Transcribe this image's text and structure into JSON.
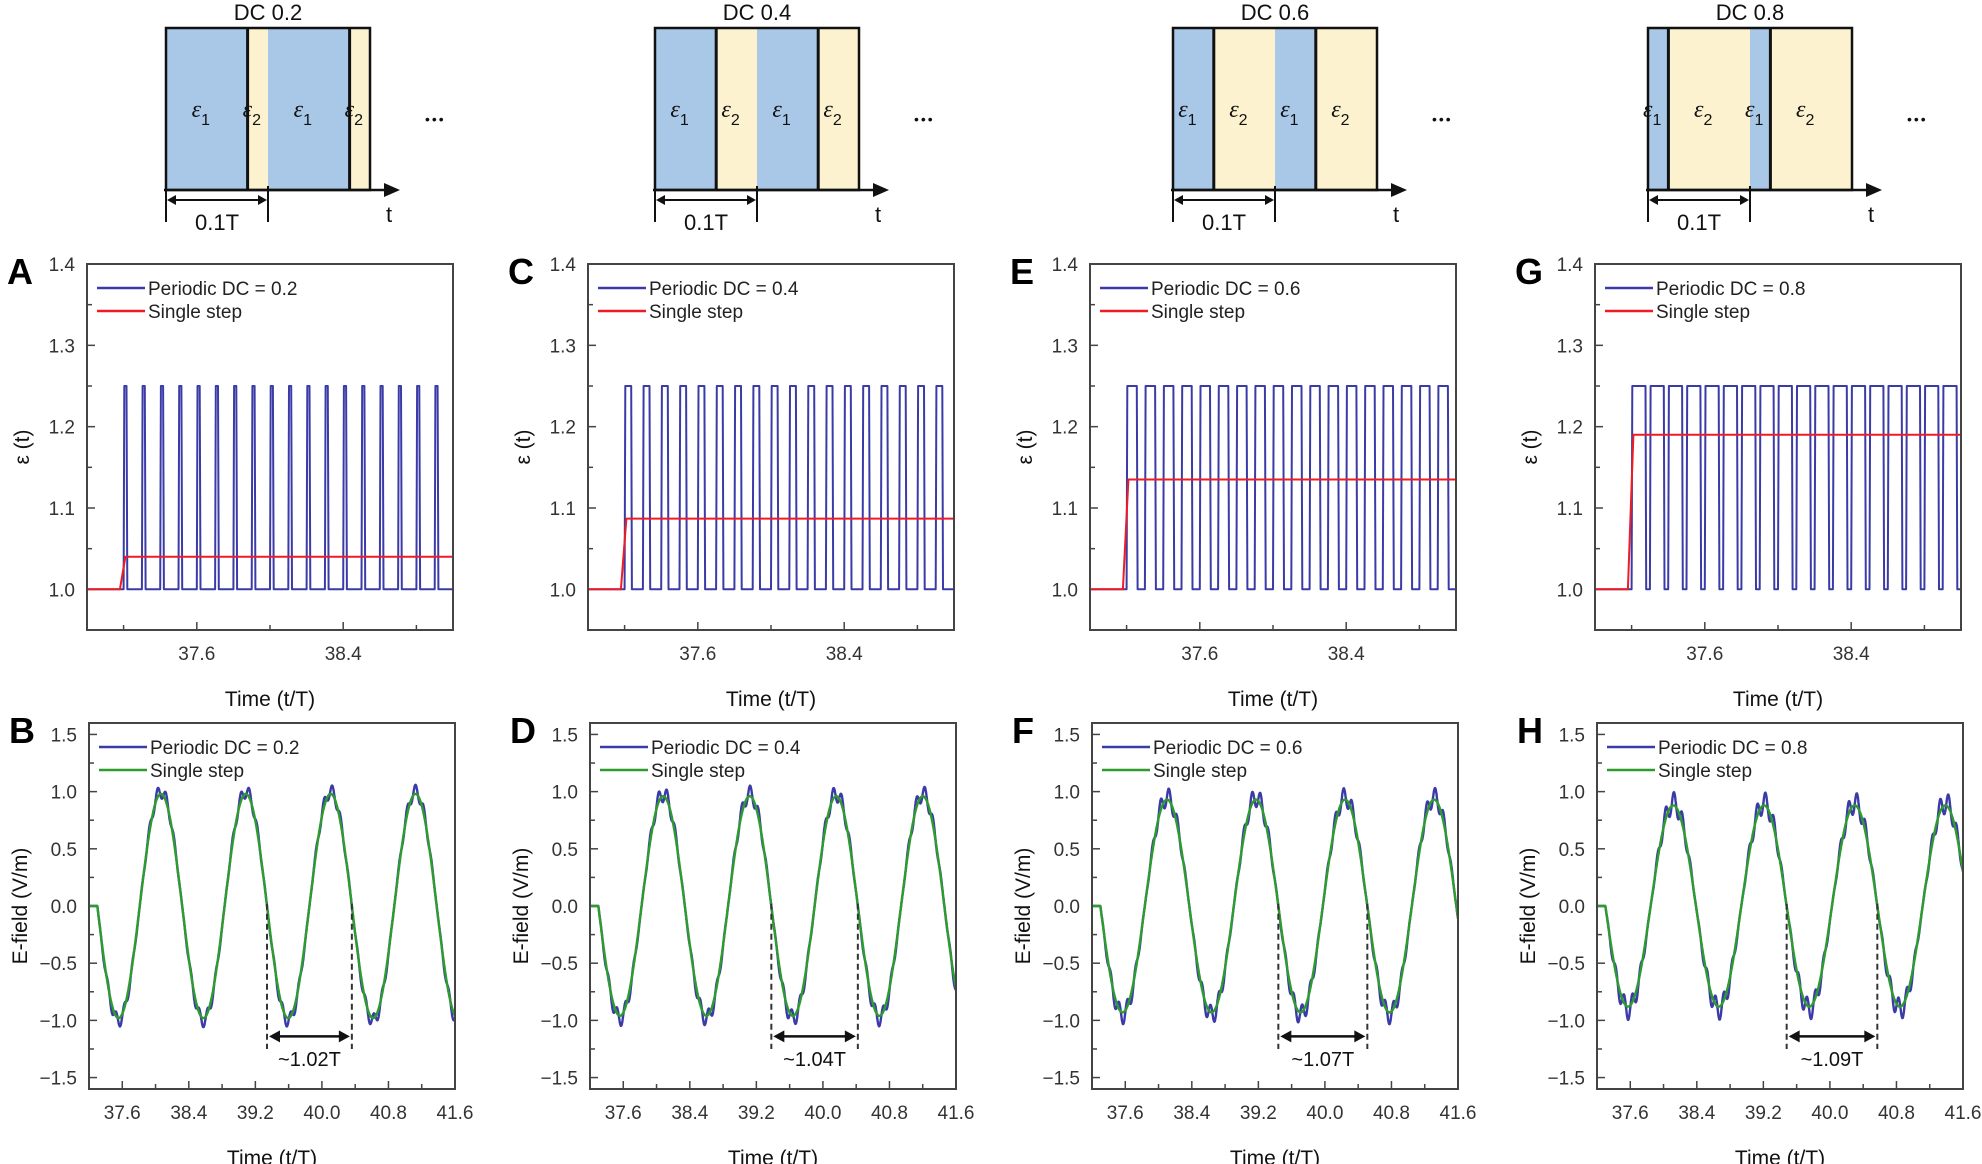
{
  "colors": {
    "periodic": "#3b3ba8",
    "single_step_top": "#ee1c24",
    "single_step_bottom": "#2e9b2e",
    "eps1_fill": "#a9c8e8",
    "eps2_fill": "#fdf2cf",
    "axis": "#444444"
  },
  "schematic_labels": {
    "eps": "ε",
    "sub1": "1",
    "sub2": "2",
    "period": "0.1T",
    "time": "t",
    "ellipsis": "•••"
  },
  "chart_data": [
    {
      "type": "schematic",
      "title": "DC 0.2",
      "duty_cycle": 0.2
    },
    {
      "type": "schematic",
      "title": "DC 0.4",
      "duty_cycle": 0.4
    },
    {
      "type": "schematic",
      "title": "DC 0.6",
      "duty_cycle": 0.6
    },
    {
      "type": "schematic",
      "title": "DC 0.8",
      "duty_cycle": 0.8
    },
    {
      "type": "line",
      "panel": "A",
      "xlabel": "Time (t/T)",
      "ylabel": "ε (t)",
      "xlim": [
        37.0,
        39.0
      ],
      "ylim": [
        0.95,
        1.4
      ],
      "xticks": [
        "37.6",
        "38.4"
      ],
      "yticks": [
        "1.0",
        "1.1",
        "1.2",
        "1.3",
        "1.4"
      ],
      "legend": "top-left",
      "series": [
        {
          "name": "Periodic DC = 0.2",
          "kind": "square_wave",
          "start": 37.2,
          "low": 1.0,
          "high": 1.25,
          "period": 0.1,
          "duty_cycle": 0.2
        },
        {
          "name": "Single step",
          "kind": "step",
          "start": 37.18,
          "low": 1.0,
          "high": 1.04
        }
      ]
    },
    {
      "type": "line",
      "panel": "C",
      "xlabel": "Time (t/T)",
      "ylabel": "ε (t)",
      "xlim": [
        37.0,
        39.0
      ],
      "ylim": [
        0.95,
        1.4
      ],
      "xticks": [
        "37.6",
        "38.4"
      ],
      "yticks": [
        "1.0",
        "1.1",
        "1.2",
        "1.3",
        "1.4"
      ],
      "legend": "top-left",
      "series": [
        {
          "name": "Periodic DC = 0.4",
          "kind": "square_wave",
          "start": 37.2,
          "low": 1.0,
          "high": 1.25,
          "period": 0.1,
          "duty_cycle": 0.4
        },
        {
          "name": "Single step",
          "kind": "step",
          "start": 37.18,
          "low": 1.0,
          "high": 1.087
        }
      ]
    },
    {
      "type": "line",
      "panel": "E",
      "xlabel": "Time (t/T)",
      "ylabel": "ε (t)",
      "xlim": [
        37.0,
        39.0
      ],
      "ylim": [
        0.95,
        1.4
      ],
      "xticks": [
        "37.6",
        "38.4"
      ],
      "yticks": [
        "1.0",
        "1.1",
        "1.2",
        "1.3",
        "1.4"
      ],
      "legend": "top-left",
      "series": [
        {
          "name": "Periodic DC = 0.6",
          "kind": "square_wave",
          "start": 37.2,
          "low": 1.0,
          "high": 1.25,
          "period": 0.1,
          "duty_cycle": 0.6
        },
        {
          "name": "Single step",
          "kind": "step",
          "start": 37.18,
          "low": 1.0,
          "high": 1.135
        }
      ]
    },
    {
      "type": "line",
      "panel": "G",
      "xlabel": "Time (t/T)",
      "ylabel": "ε (t)",
      "xlim": [
        37.0,
        39.0
      ],
      "ylim": [
        0.95,
        1.4
      ],
      "xticks": [
        "37.6",
        "38.4"
      ],
      "yticks": [
        "1.0",
        "1.1",
        "1.2",
        "1.3",
        "1.4"
      ],
      "legend": "top-left",
      "series": [
        {
          "name": "Periodic DC = 0.8",
          "kind": "square_wave",
          "start": 37.2,
          "low": 1.0,
          "high": 1.25,
          "period": 0.1,
          "duty_cycle": 0.8
        },
        {
          "name": "Single step",
          "kind": "step",
          "start": 37.18,
          "low": 1.0,
          "high": 1.19
        }
      ]
    },
    {
      "type": "line",
      "panel": "B",
      "xlabel": "Time (t/T)",
      "ylabel": "E-field (V/m)",
      "xlim": [
        37.2,
        41.6
      ],
      "ylim": [
        -1.6,
        1.6
      ],
      "xticks": [
        "37.6",
        "38.4",
        "39.2",
        "40.0",
        "40.8",
        "41.6"
      ],
      "yticks": [
        "−1.5",
        "−1.0",
        "−0.5",
        "0.0",
        "0.5",
        "1.0",
        "1.5"
      ],
      "legend": "top-left",
      "series": [
        {
          "name": "Periodic DC = 0.2",
          "kind": "sine",
          "onset": 37.3,
          "amplitude": 1.0,
          "period": 1.02,
          "ripple": 0.05
        },
        {
          "name": "Single step",
          "kind": "sine",
          "onset": 37.3,
          "amplitude": 0.98,
          "period": 1.02,
          "ripple": 0
        }
      ],
      "annotation": {
        "text": "~1.02T",
        "x_from": 39.34,
        "x_to": 40.36
      }
    },
    {
      "type": "line",
      "panel": "D",
      "xlabel": "Time (t/T)",
      "ylabel": "E-field (V/m)",
      "xlim": [
        37.2,
        41.6
      ],
      "ylim": [
        -1.6,
        1.6
      ],
      "xticks": [
        "37.6",
        "38.4",
        "39.2",
        "40.0",
        "40.8",
        "41.6"
      ],
      "yticks": [
        "−1.5",
        "−1.0",
        "−0.5",
        "0.0",
        "0.5",
        "1.0",
        "1.5"
      ],
      "legend": "top-left",
      "series": [
        {
          "name": "Periodic DC = 0.4",
          "kind": "sine",
          "onset": 37.3,
          "amplitude": 0.98,
          "period": 1.04,
          "ripple": 0.06
        },
        {
          "name": "Single step",
          "kind": "sine",
          "onset": 37.3,
          "amplitude": 0.96,
          "period": 1.04,
          "ripple": 0
        }
      ],
      "annotation": {
        "text": "~1.04T",
        "x_from": 39.38,
        "x_to": 40.42
      }
    },
    {
      "type": "line",
      "panel": "F",
      "xlabel": "Time (t/T)",
      "ylabel": "E-field (V/m)",
      "xlim": [
        37.2,
        41.6
      ],
      "ylim": [
        -1.6,
        1.6
      ],
      "xticks": [
        "37.6",
        "38.4",
        "39.2",
        "40.0",
        "40.8",
        "41.6"
      ],
      "yticks": [
        "−1.5",
        "−1.0",
        "−0.5",
        "0.0",
        "0.5",
        "1.0",
        "1.5"
      ],
      "legend": "top-left",
      "series": [
        {
          "name": "Periodic DC = 0.6",
          "kind": "sine",
          "onset": 37.3,
          "amplitude": 0.95,
          "period": 1.07,
          "ripple": 0.07
        },
        {
          "name": "Single step",
          "kind": "sine",
          "onset": 37.3,
          "amplitude": 0.93,
          "period": 1.07,
          "ripple": 0
        }
      ],
      "annotation": {
        "text": "~1.07T",
        "x_from": 39.44,
        "x_to": 40.51
      }
    },
    {
      "type": "line",
      "panel": "H",
      "xlabel": "Time (t/T)",
      "ylabel": "E-field (V/m)",
      "xlim": [
        37.2,
        41.6
      ],
      "ylim": [
        -1.6,
        1.6
      ],
      "xticks": [
        "37.6",
        "38.4",
        "39.2",
        "40.0",
        "40.8",
        "41.6"
      ],
      "yticks": [
        "−1.5",
        "−1.0",
        "−0.5",
        "0.0",
        "0.5",
        "1.0",
        "1.5"
      ],
      "legend": "top-left",
      "series": [
        {
          "name": "Periodic DC = 0.8",
          "kind": "sine",
          "onset": 37.3,
          "amplitude": 0.9,
          "period": 1.09,
          "ripple": 0.08
        },
        {
          "name": "Single step",
          "kind": "sine",
          "onset": 37.3,
          "amplitude": 0.88,
          "period": 1.09,
          "ripple": 0
        }
      ],
      "annotation": {
        "text": "~1.09T",
        "x_from": 39.48,
        "x_to": 40.57
      }
    }
  ]
}
